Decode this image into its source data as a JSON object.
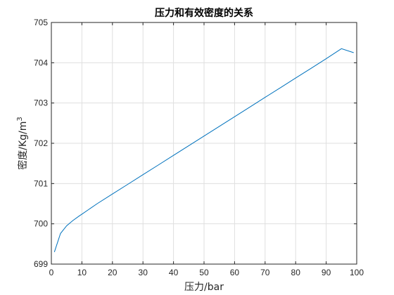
{
  "chart_data": {
    "type": "line",
    "title": "压力和有效密度的关系",
    "xlabel": "压力/bar",
    "ylabel_base": "密度/Kg/m",
    "ylabel_sup": "3",
    "xlim": [
      0,
      100
    ],
    "ylim": [
      699,
      705
    ],
    "xticks": [
      0,
      10,
      20,
      30,
      40,
      50,
      60,
      70,
      80,
      90,
      100
    ],
    "yticks": [
      699,
      700,
      701,
      702,
      703,
      704,
      705
    ],
    "grid": true,
    "box": true,
    "series": [
      {
        "color": "#0072BD",
        "x": [
          1,
          3,
          5,
          7,
          9,
          10,
          15,
          20,
          25,
          30,
          35,
          40,
          45,
          50,
          55,
          60,
          65,
          70,
          75,
          80,
          85,
          90,
          95,
          99
        ],
        "y": [
          699.3,
          699.76,
          699.95,
          700.08,
          700.19,
          700.24,
          700.5,
          700.74,
          700.98,
          701.22,
          701.46,
          701.7,
          701.94,
          702.18,
          702.42,
          702.66,
          702.9,
          703.14,
          703.38,
          703.62,
          703.86,
          704.1,
          704.35,
          704.25
        ]
      }
    ]
  }
}
